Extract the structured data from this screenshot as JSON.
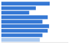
{
  "chart_data": {
    "type": "bar",
    "orientation": "horizontal",
    "categories": [
      null,
      null,
      null,
      null,
      null,
      null,
      null,
      null,
      null
    ],
    "values": [
      0.73,
      0.52,
      0.42,
      0.7,
      0.62,
      0.72,
      0.7,
      0.62,
      0.58
    ],
    "colors": [
      "#3578d4",
      "#3578d4",
      "#3578d4",
      "#3578d4",
      "#3578d4",
      "#3578d4",
      "#3578d4",
      "#3578d4",
      "#a8c8f0"
    ],
    "xlim": [
      0,
      1.0
    ],
    "grid": false,
    "tick_labels": false
  }
}
